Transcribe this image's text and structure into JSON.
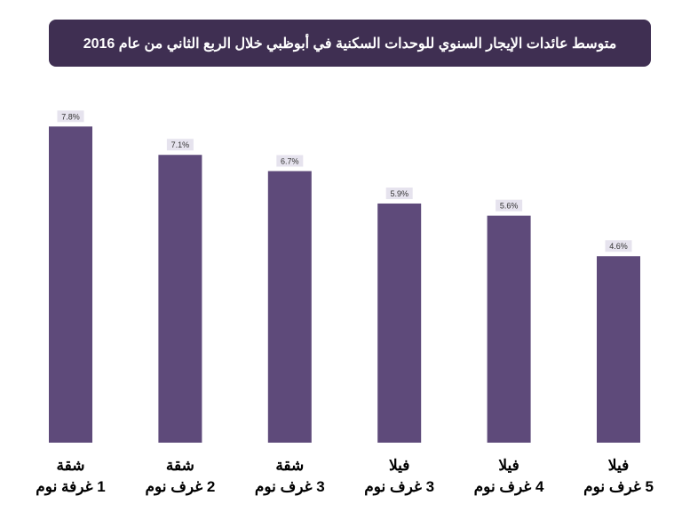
{
  "chart_data": {
    "type": "bar",
    "title": "متوسط عائدات الإيجار السنوي للوحدات السكنية في أبوظبي خلال الربع الثاني من عام 2016",
    "categories": [
      {
        "line1": "شقة",
        "line2": "1 غرفة نوم"
      },
      {
        "line1": "شقة",
        "line2": "2 غرف نوم"
      },
      {
        "line1": "شقة",
        "line2": "3 غرف نوم"
      },
      {
        "line1": "فيلا",
        "line2": "3 غرف نوم"
      },
      {
        "line1": "فيلا",
        "line2": "4 غرف نوم"
      },
      {
        "line1": "فيلا",
        "line2": "5 غرف نوم"
      }
    ],
    "values": [
      7.8,
      7.1,
      6.7,
      5.9,
      5.6,
      4.6
    ],
    "data_labels": [
      "7.8%",
      "7.1%",
      "6.7%",
      "5.9%",
      "5.6%",
      "4.6%"
    ],
    "xlabel": "",
    "ylabel": "",
    "ylim": [
      0,
      10
    ],
    "grid": false,
    "colors": {
      "bar": "#5e4a7a",
      "title_bg": "#3f2f52",
      "label_bg": "#e6e3ee"
    }
  }
}
